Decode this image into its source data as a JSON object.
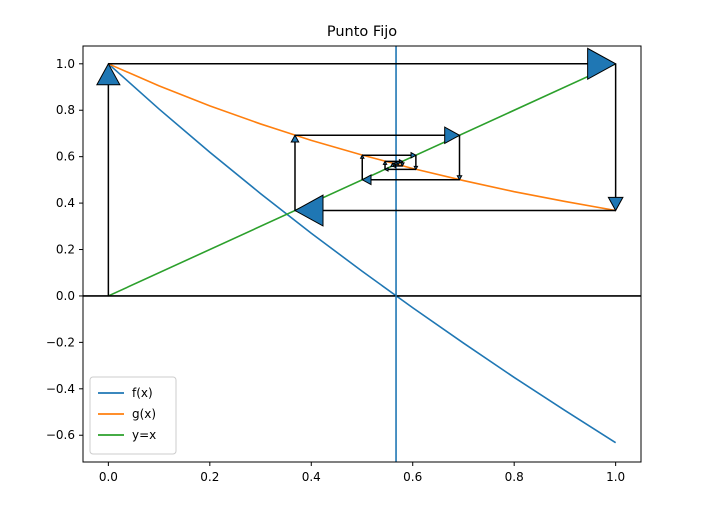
{
  "chart_data": {
    "type": "line",
    "title": "Punto Fijo",
    "xlabel": "",
    "ylabel": "",
    "xlim": [
      -0.05,
      1.05
    ],
    "ylim": [
      -0.7153,
      1.0767
    ],
    "x_ticks": [
      0.0,
      0.2,
      0.4,
      0.6,
      0.8,
      1.0
    ],
    "x_tick_labels": [
      "0.0",
      "0.2",
      "0.4",
      "0.6",
      "0.8",
      "1.0"
    ],
    "y_ticks": [
      -0.6,
      -0.4,
      -0.2,
      0.0,
      0.2,
      0.4,
      0.6,
      0.8,
      1.0
    ],
    "y_tick_labels": [
      "−0.6",
      "−0.4",
      "−0.2",
      "0.0",
      "0.2",
      "0.4",
      "0.6",
      "0.8",
      "1.0"
    ],
    "grid": false,
    "legend_position": "lower-left",
    "series": [
      {
        "name": "f(x)",
        "color": "#1f77b4",
        "x": [
          0,
          0.1,
          0.2,
          0.3,
          0.4,
          0.5,
          0.6,
          0.7,
          0.8,
          0.9,
          1.0
        ],
        "y": [
          1.0,
          0.805,
          0.619,
          0.441,
          0.27,
          0.107,
          -0.051,
          -0.203,
          -0.351,
          -0.493,
          -0.632
        ]
      },
      {
        "name": "g(x)",
        "color": "#ff7f0e",
        "x": [
          0,
          0.1,
          0.2,
          0.3,
          0.4,
          0.5,
          0.6,
          0.7,
          0.8,
          0.9,
          1.0
        ],
        "y": [
          1.0,
          0.905,
          0.819,
          0.741,
          0.67,
          0.607,
          0.549,
          0.497,
          0.449,
          0.407,
          0.368
        ]
      },
      {
        "name": "y=x",
        "color": "#2ca02c",
        "x": [
          0,
          1
        ],
        "y": [
          0,
          1
        ]
      }
    ],
    "reference_lines": {
      "horizontal_y": 0.0,
      "vertical_x": 0.5671,
      "horizontal_color": "#000000",
      "vertical_color": "#1f77b4"
    },
    "cobweb": {
      "x0": 0.0,
      "iterations": [
        {
          "x": 0.0,
          "gx": 1.0
        },
        {
          "x": 1.0,
          "gx": 0.3679
        },
        {
          "x": 0.3679,
          "gx": 0.6922
        },
        {
          "x": 0.6922,
          "gx": 0.5005
        },
        {
          "x": 0.5005,
          "gx": 0.6062
        },
        {
          "x": 0.6062,
          "gx": 0.5454
        },
        {
          "x": 0.5454,
          "gx": 0.5796
        },
        {
          "x": 0.5796,
          "gx": 0.5601
        },
        {
          "x": 0.5601,
          "gx": 0.5711
        },
        {
          "x": 0.5711,
          "gx": 0.5649
        }
      ],
      "arrow_color": "#000000",
      "head_fill": "#1f77b4"
    }
  }
}
